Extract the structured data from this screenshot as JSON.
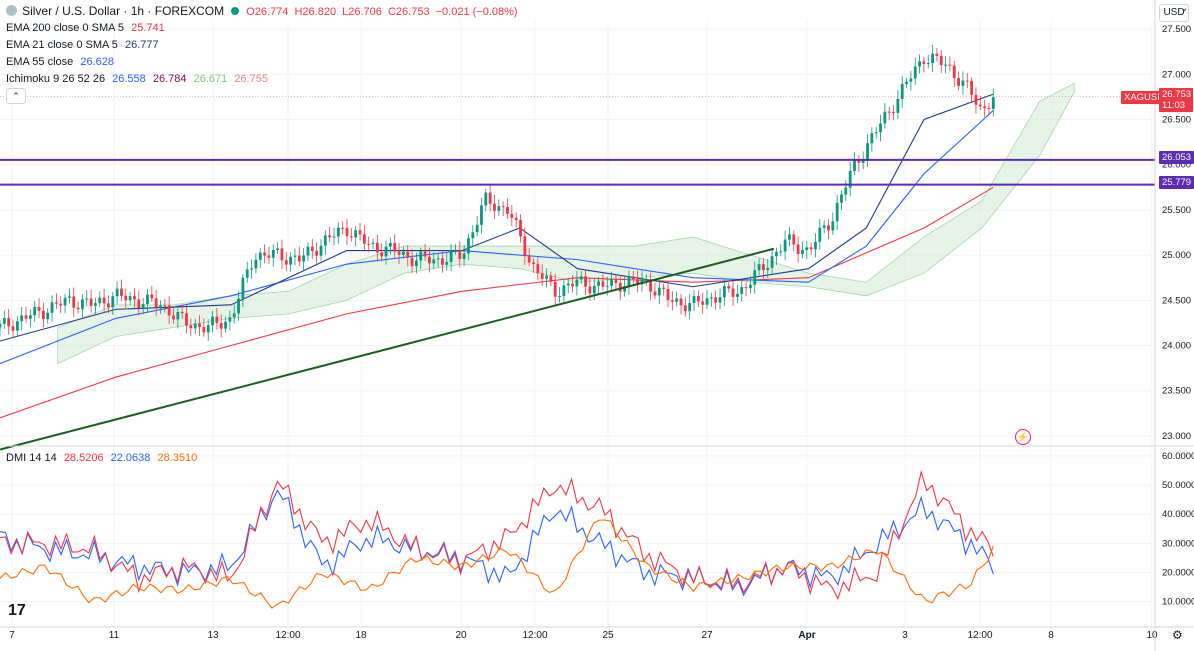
{
  "header": {
    "symbol_title": "Silver / U.S. Dollar · 1h · FOREXCOM",
    "ohlc": {
      "open": "O26.774",
      "high": "H26.820",
      "low": "L26.706",
      "close": "C26.753",
      "change": "−0.021 (−0.08%)"
    },
    "indicators": [
      {
        "label": "EMA 200 close 0 SMA 5",
        "values": [
          "25.741"
        ],
        "colors": [
          "#f23645"
        ]
      },
      {
        "label": "EMA 21 close 0 SMA 5",
        "values": [
          "26.777"
        ],
        "colors": [
          "#1e3a8a"
        ]
      },
      {
        "label": "EMA 55 close",
        "values": [
          "26.628"
        ],
        "colors": [
          "#2962ff"
        ]
      },
      {
        "label": "Ichimoku 9 26 52 26",
        "values": [
          "26.558",
          "26.784",
          "26.671",
          "26.755"
        ],
        "colors": [
          "#2962ff",
          "#880e4f",
          "#81c784",
          "#f08080"
        ]
      }
    ],
    "currency": "USD"
  },
  "dmi": {
    "label": "DMI 14 14",
    "values": [
      "28.5206",
      "22.0638",
      "28.3510"
    ],
    "colors": [
      "#f23645",
      "#2962ff",
      "#ff6d00"
    ]
  },
  "price_tags": {
    "symbol": "XAGUSD",
    "price": "26.753",
    "countdown": "11:03",
    "level1": "26.053",
    "level2": "25.779"
  },
  "colors": {
    "up": "#089981",
    "down": "#f23645",
    "hline": "#5b2bb5",
    "trend": "#1b5e20",
    "ema200": "#f23645",
    "ema21": "#1e3a8a",
    "ema55": "#2962ff",
    "dmi_plus": "#2962ff",
    "dmi_minus": "#f23645",
    "adx": "#ff6d00"
  },
  "chart_data": [
    {
      "type": "line",
      "title": "Silver / U.S. Dollar · 1h · FOREXCOM",
      "x_ticks": [
        "7",
        "11",
        "13",
        "12:00",
        "18",
        "20",
        "12:00",
        "25",
        "27",
        "Apr",
        "3",
        "12:00",
        "8",
        "10"
      ],
      "y_ticks": [
        "27.500",
        "27.000",
        "26.500",
        "26.000",
        "25.500",
        "25.000",
        "24.500",
        "24.000",
        "23.500",
        "23.000"
      ],
      "ylim": [
        22.9,
        27.6
      ],
      "horizontal_levels": [
        26.053,
        25.779
      ],
      "trendline": {
        "from": [
          0,
          22.85
        ],
        "to": [
          0.67,
          25.07
        ]
      },
      "series": [
        {
          "name": "Price",
          "x": [
            0,
            0.02,
            0.04,
            0.06,
            0.08,
            0.1,
            0.12,
            0.14,
            0.16,
            0.18,
            0.2,
            0.22,
            0.24,
            0.26,
            0.28,
            0.3,
            0.32,
            0.34,
            0.36,
            0.38,
            0.4,
            0.42,
            0.44,
            0.46,
            0.48,
            0.5,
            0.52,
            0.54,
            0.56,
            0.58,
            0.6,
            0.62,
            0.64,
            0.66,
            0.68,
            0.7,
            0.72,
            0.74,
            0.76,
            0.78,
            0.8,
            0.82,
            0.84,
            0.85,
            0.86
          ],
          "values": [
            24.2,
            24.3,
            24.4,
            24.5,
            24.45,
            24.55,
            24.5,
            24.45,
            24.25,
            24.2,
            24.3,
            25.0,
            25.0,
            24.95,
            25.15,
            25.3,
            25.1,
            25.05,
            24.95,
            24.95,
            25.0,
            25.6,
            25.5,
            24.9,
            24.6,
            24.7,
            24.65,
            24.7,
            24.7,
            24.5,
            24.45,
            24.55,
            24.6,
            24.85,
            25.15,
            25.05,
            25.4,
            26.0,
            26.4,
            26.8,
            27.2,
            27.1,
            26.8,
            26.6,
            26.75
          ]
        },
        {
          "name": "EMA 200",
          "x": [
            0,
            0.1,
            0.2,
            0.3,
            0.4,
            0.5,
            0.6,
            0.7,
            0.8,
            0.86
          ],
          "values": [
            23.2,
            23.65,
            24.0,
            24.35,
            24.6,
            24.75,
            24.7,
            24.75,
            25.3,
            25.75
          ]
        },
        {
          "name": "EMA 55",
          "x": [
            0,
            0.1,
            0.2,
            0.3,
            0.4,
            0.5,
            0.6,
            0.7,
            0.75,
            0.8,
            0.86
          ],
          "values": [
            23.8,
            24.3,
            24.55,
            24.9,
            25.05,
            24.95,
            24.75,
            24.7,
            25.1,
            25.9,
            26.6
          ]
        },
        {
          "name": "EMA 21",
          "x": [
            0,
            0.1,
            0.2,
            0.3,
            0.4,
            0.45,
            0.5,
            0.6,
            0.7,
            0.75,
            0.8,
            0.86
          ],
          "values": [
            24.05,
            24.4,
            24.45,
            25.05,
            25.05,
            25.3,
            24.85,
            24.65,
            24.85,
            25.3,
            26.5,
            26.78
          ]
        }
      ]
    },
    {
      "type": "line",
      "title": "DMI 14 14",
      "y_ticks": [
        "60.0000",
        "50.0000",
        "40.0000",
        "30.0000",
        "20.0000",
        "10.0000"
      ],
      "ylim": [
        2,
        62
      ],
      "series": [
        {
          "name": "+DI",
          "x": [
            0,
            0.04,
            0.08,
            0.12,
            0.16,
            0.2,
            0.24,
            0.28,
            0.32,
            0.36,
            0.4,
            0.44,
            0.48,
            0.52,
            0.56,
            0.6,
            0.64,
            0.68,
            0.72,
            0.76,
            0.8,
            0.84,
            0.86
          ],
          "values": [
            32,
            28,
            26,
            22,
            20,
            22,
            48,
            22,
            32,
            28,
            25,
            18,
            42,
            30,
            20,
            18,
            15,
            22,
            18,
            30,
            42,
            30,
            22
          ]
        },
        {
          "name": "-DI",
          "x": [
            0,
            0.04,
            0.08,
            0.12,
            0.16,
            0.2,
            0.24,
            0.28,
            0.32,
            0.36,
            0.4,
            0.44,
            0.48,
            0.52,
            0.56,
            0.6,
            0.64,
            0.68,
            0.72,
            0.76,
            0.8,
            0.84,
            0.86
          ],
          "values": [
            30,
            30,
            28,
            18,
            22,
            18,
            51,
            30,
            38,
            28,
            24,
            32,
            50,
            42,
            26,
            18,
            16,
            22,
            14,
            20,
            52,
            34,
            28
          ]
        },
        {
          "name": "ADX",
          "x": [
            0,
            0.04,
            0.08,
            0.12,
            0.16,
            0.2,
            0.24,
            0.28,
            0.32,
            0.36,
            0.4,
            0.44,
            0.48,
            0.52,
            0.56,
            0.6,
            0.64,
            0.68,
            0.72,
            0.76,
            0.8,
            0.84,
            0.86
          ],
          "values": [
            18,
            22,
            10,
            15,
            14,
            18,
            8,
            20,
            14,
            25,
            22,
            28,
            12,
            40,
            22,
            15,
            18,
            22,
            22,
            28,
            10,
            16,
            28
          ]
        }
      ]
    }
  ]
}
